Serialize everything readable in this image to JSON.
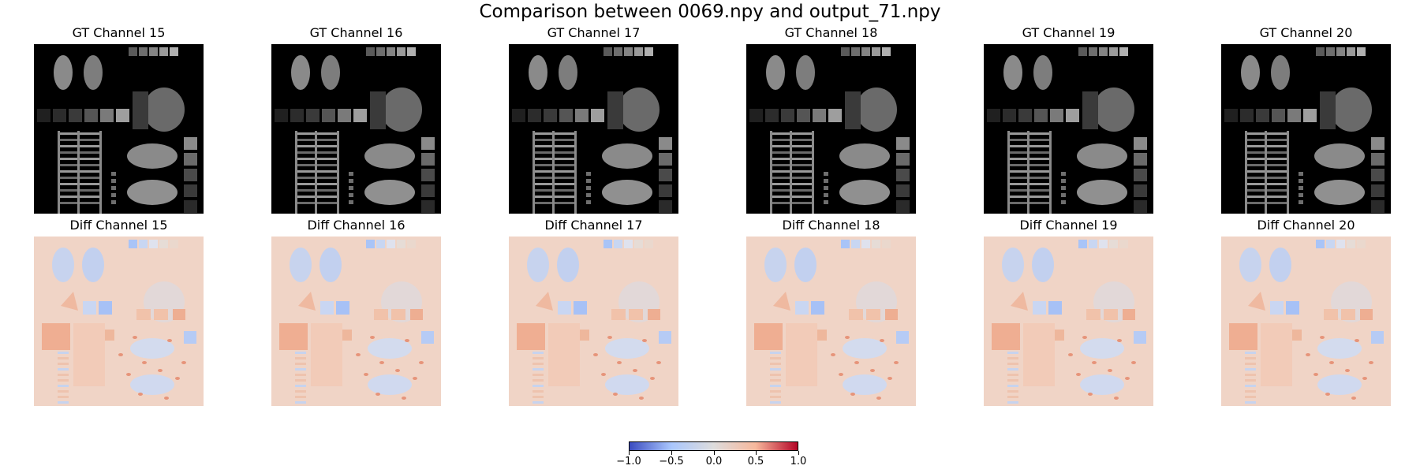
{
  "title": "Comparison between 0069.npy and output_71.npy",
  "gt_titles": [
    "GT Channel 15",
    "GT Channel 16",
    "GT Channel 17",
    "GT Channel 18",
    "GT Channel 19",
    "GT Channel 20"
  ],
  "diff_titles": [
    "Diff Channel 15",
    "Diff Channel 16",
    "Diff Channel 17",
    "Diff Channel 18",
    "Diff Channel 19",
    "Diff Channel 20"
  ],
  "colorbar": {
    "colormap": "coolwarm",
    "range": [
      -1.0,
      1.0
    ],
    "ticks": [
      "−1.0",
      "−0.5",
      "0.0",
      "0.5",
      "1.0"
    ],
    "colors": [
      "#3b4cc0",
      "#aac7fd",
      "#dddcdc",
      "#f7b89c",
      "#b40426"
    ]
  },
  "colors": {
    "diff_background": "#f0d4c6",
    "gt_background": "#000000"
  }
}
